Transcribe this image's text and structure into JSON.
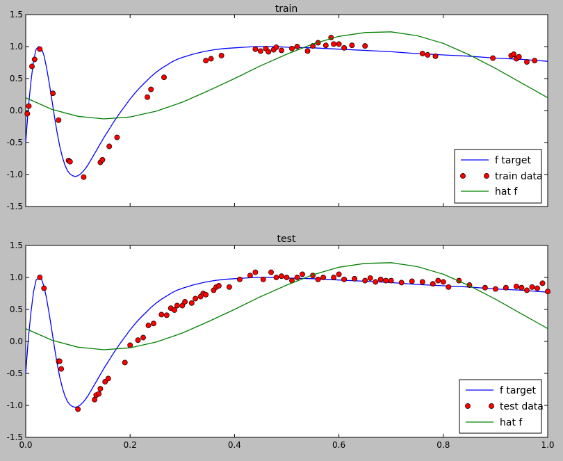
{
  "figure_background": "#bfbfbf",
  "colors": {
    "target": "#0000ff",
    "points": "#ff0000",
    "point_edge": "#000000",
    "hat": "#008000"
  },
  "chart_data": [
    {
      "type": "line",
      "title": "train",
      "xlim": [
        0,
        1
      ],
      "ylim": [
        -1.5,
        1.5
      ],
      "yticks": [
        "-1.5",
        "-1.0",
        "-0.5",
        "0.0",
        "0.5",
        "1.0",
        "1.5"
      ],
      "xticks": [
        "0.0",
        "0.2",
        "0.4",
        "0.6",
        "0.8",
        "1.0"
      ],
      "show_xtick_labels": false,
      "legend_placement": "lower-right",
      "legend": [
        "f target",
        "train data",
        "hat f"
      ],
      "series": [
        {
          "name": "f target",
          "kind": "line",
          "color": "#0000ff",
          "x": [
            0,
            0.005,
            0.01,
            0.015,
            0.02,
            0.025,
            0.03,
            0.035,
            0.04,
            0.045,
            0.05,
            0.055,
            0.06,
            0.065,
            0.07,
            0.075,
            0.08,
            0.085,
            0.09,
            0.095,
            0.1,
            0.105,
            0.11,
            0.115,
            0.12,
            0.125,
            0.13,
            0.135,
            0.14,
            0.145,
            0.15,
            0.16,
            0.17,
            0.18,
            0.19,
            0.2,
            0.21,
            0.22,
            0.23,
            0.24,
            0.25,
            0.26,
            0.27,
            0.28,
            0.29,
            0.3,
            0.32,
            0.34,
            0.36,
            0.38,
            0.4,
            0.42,
            0.44,
            0.46,
            0.48,
            0.5,
            0.55,
            0.6,
            0.65,
            0.7,
            0.75,
            0.8,
            0.85,
            0.9,
            0.95,
            1.0
          ],
          "y": [
            -0.5,
            0.05,
            0.45,
            0.78,
            0.96,
            1.0,
            0.98,
            0.86,
            0.67,
            0.43,
            0.17,
            -0.09,
            -0.34,
            -0.55,
            -0.72,
            -0.85,
            -0.94,
            -0.99,
            -1.02,
            -1.03,
            -1.02,
            -0.99,
            -0.95,
            -0.9,
            -0.84,
            -0.77,
            -0.7,
            -0.63,
            -0.56,
            -0.49,
            -0.42,
            -0.29,
            -0.16,
            -0.04,
            0.07,
            0.18,
            0.28,
            0.37,
            0.45,
            0.53,
            0.6,
            0.66,
            0.71,
            0.76,
            0.8,
            0.83,
            0.88,
            0.92,
            0.95,
            0.97,
            0.98,
            0.99,
            1.0,
            1.0,
            1.0,
            0.99,
            0.98,
            0.96,
            0.94,
            0.92,
            0.89,
            0.87,
            0.85,
            0.82,
            0.8,
            0.77
          ]
        },
        {
          "name": "train data",
          "kind": "scatter",
          "color": "#ff0000",
          "x": [
            0.003,
            0.006,
            0.012,
            0.017,
            0.027,
            0.052,
            0.063,
            0.082,
            0.085,
            0.111,
            0.143,
            0.147,
            0.16,
            0.175,
            0.233,
            0.24,
            0.265,
            0.345,
            0.355,
            0.375,
            0.44,
            0.45,
            0.46,
            0.465,
            0.475,
            0.48,
            0.49,
            0.51,
            0.52,
            0.54,
            0.55,
            0.56,
            0.575,
            0.585,
            0.59,
            0.6,
            0.61,
            0.625,
            0.65,
            0.76,
            0.77,
            0.785,
            0.895,
            0.93,
            0.935,
            0.94,
            0.945,
            0.96,
            0.975
          ],
          "y": [
            -0.05,
            0.07,
            0.69,
            0.8,
            0.96,
            0.27,
            -0.15,
            -0.78,
            -0.8,
            -1.04,
            -0.81,
            -0.77,
            -0.56,
            -0.42,
            0.21,
            0.33,
            0.52,
            0.78,
            0.81,
            0.86,
            0.96,
            0.93,
            0.97,
            0.92,
            0.95,
            0.99,
            0.94,
            0.97,
            1.0,
            0.93,
            1.01,
            1.06,
            1.02,
            1.14,
            1.04,
            1.04,
            0.98,
            1.02,
            1.01,
            0.89,
            0.87,
            0.85,
            0.82,
            0.86,
            0.88,
            0.81,
            0.84,
            0.76,
            0.78
          ]
        },
        {
          "name": "hat f",
          "kind": "line",
          "color": "#008000",
          "x": [
            0,
            0.05,
            0.1,
            0.15,
            0.2,
            0.25,
            0.3,
            0.35,
            0.4,
            0.45,
            0.5,
            0.55,
            0.6,
            0.65,
            0.7,
            0.75,
            0.8,
            0.85,
            0.9,
            0.95,
            1.0
          ],
          "y": [
            0.2,
            0.02,
            -0.09,
            -0.13,
            -0.1,
            -0.01,
            0.13,
            0.31,
            0.5,
            0.7,
            0.88,
            1.04,
            1.16,
            1.22,
            1.23,
            1.17,
            1.05,
            0.87,
            0.66,
            0.43,
            0.2
          ]
        }
      ]
    },
    {
      "type": "line",
      "title": "test",
      "xlim": [
        0,
        1
      ],
      "ylim": [
        -1.5,
        1.5
      ],
      "yticks": [
        "-1.5",
        "-1.0",
        "-0.5",
        "0.0",
        "0.5",
        "1.0",
        "1.5"
      ],
      "xticks": [
        "0.0",
        "0.2",
        "0.4",
        "0.6",
        "0.8",
        "1.0"
      ],
      "show_xtick_labels": true,
      "legend_placement": "lower-right",
      "legend": [
        "f target",
        "test data",
        "hat f"
      ],
      "series": [
        {
          "name": "f target",
          "kind": "line",
          "color": "#0000ff",
          "x": [
            0,
            0.005,
            0.01,
            0.015,
            0.02,
            0.025,
            0.03,
            0.035,
            0.04,
            0.045,
            0.05,
            0.055,
            0.06,
            0.065,
            0.07,
            0.075,
            0.08,
            0.085,
            0.09,
            0.095,
            0.1,
            0.105,
            0.11,
            0.115,
            0.12,
            0.125,
            0.13,
            0.135,
            0.14,
            0.145,
            0.15,
            0.16,
            0.17,
            0.18,
            0.19,
            0.2,
            0.21,
            0.22,
            0.23,
            0.24,
            0.25,
            0.26,
            0.27,
            0.28,
            0.29,
            0.3,
            0.32,
            0.34,
            0.36,
            0.38,
            0.4,
            0.42,
            0.44,
            0.46,
            0.48,
            0.5,
            0.55,
            0.6,
            0.65,
            0.7,
            0.75,
            0.8,
            0.85,
            0.9,
            0.95,
            1.0
          ],
          "y": [
            -0.5,
            0.05,
            0.45,
            0.78,
            0.96,
            1.0,
            0.98,
            0.86,
            0.67,
            0.43,
            0.17,
            -0.09,
            -0.34,
            -0.55,
            -0.72,
            -0.85,
            -0.94,
            -0.99,
            -1.02,
            -1.03,
            -1.02,
            -0.99,
            -0.95,
            -0.9,
            -0.84,
            -0.77,
            -0.7,
            -0.63,
            -0.56,
            -0.49,
            -0.42,
            -0.29,
            -0.16,
            -0.04,
            0.07,
            0.18,
            0.28,
            0.37,
            0.45,
            0.53,
            0.6,
            0.66,
            0.71,
            0.76,
            0.8,
            0.83,
            0.88,
            0.92,
            0.95,
            0.97,
            0.98,
            0.99,
            1.0,
            1.0,
            1.0,
            0.99,
            0.98,
            0.96,
            0.94,
            0.92,
            0.89,
            0.87,
            0.85,
            0.82,
            0.8,
            0.77
          ]
        },
        {
          "name": "test data",
          "kind": "scatter",
          "color": "#ff0000",
          "x": [
            0.027,
            0.035,
            0.063,
            0.065,
            0.068,
            0.1,
            0.132,
            0.135,
            0.14,
            0.143,
            0.152,
            0.158,
            0.19,
            0.2,
            0.215,
            0.225,
            0.235,
            0.245,
            0.26,
            0.27,
            0.278,
            0.285,
            0.29,
            0.3,
            0.305,
            0.318,
            0.325,
            0.335,
            0.34,
            0.345,
            0.36,
            0.365,
            0.37,
            0.39,
            0.41,
            0.43,
            0.44,
            0.455,
            0.47,
            0.48,
            0.49,
            0.5,
            0.51,
            0.52,
            0.53,
            0.55,
            0.56,
            0.57,
            0.59,
            0.6,
            0.61,
            0.63,
            0.65,
            0.66,
            0.67,
            0.68,
            0.69,
            0.7,
            0.72,
            0.74,
            0.76,
            0.78,
            0.79,
            0.8,
            0.81,
            0.83,
            0.85,
            0.88,
            0.9,
            0.92,
            0.94,
            0.95,
            0.96,
            0.97,
            0.98,
            0.99,
            1.0
          ],
          "y": [
            1.0,
            0.83,
            -0.31,
            -0.31,
            -0.43,
            -1.06,
            -0.91,
            -0.84,
            -0.82,
            -0.74,
            -0.63,
            -0.58,
            -0.33,
            -0.06,
            0.02,
            0.06,
            0.25,
            0.28,
            0.42,
            0.41,
            0.52,
            0.49,
            0.56,
            0.56,
            0.62,
            0.6,
            0.67,
            0.7,
            0.75,
            0.73,
            0.8,
            0.85,
            0.87,
            0.85,
            0.97,
            1.03,
            1.08,
            0.97,
            1.08,
            1.0,
            1.02,
            1.0,
            0.95,
            1.0,
            1.05,
            1.03,
            0.97,
            1.0,
            1.0,
            1.05,
            0.97,
            0.98,
            0.95,
            0.99,
            0.93,
            0.97,
            0.95,
            0.95,
            0.92,
            0.94,
            0.93,
            0.9,
            0.95,
            0.93,
            0.85,
            0.95,
            0.88,
            0.84,
            0.82,
            0.84,
            0.86,
            0.84,
            0.8,
            0.85,
            0.83,
            0.91,
            0.78
          ]
        },
        {
          "name": "hat f",
          "kind": "line",
          "color": "#008000",
          "x": [
            0,
            0.05,
            0.1,
            0.15,
            0.2,
            0.25,
            0.3,
            0.35,
            0.4,
            0.45,
            0.5,
            0.55,
            0.6,
            0.65,
            0.7,
            0.75,
            0.8,
            0.85,
            0.9,
            0.95,
            1.0
          ],
          "y": [
            0.2,
            0.02,
            -0.09,
            -0.13,
            -0.1,
            -0.01,
            0.13,
            0.31,
            0.5,
            0.7,
            0.88,
            1.04,
            1.16,
            1.22,
            1.23,
            1.17,
            1.05,
            0.87,
            0.66,
            0.43,
            0.2
          ]
        }
      ]
    }
  ]
}
